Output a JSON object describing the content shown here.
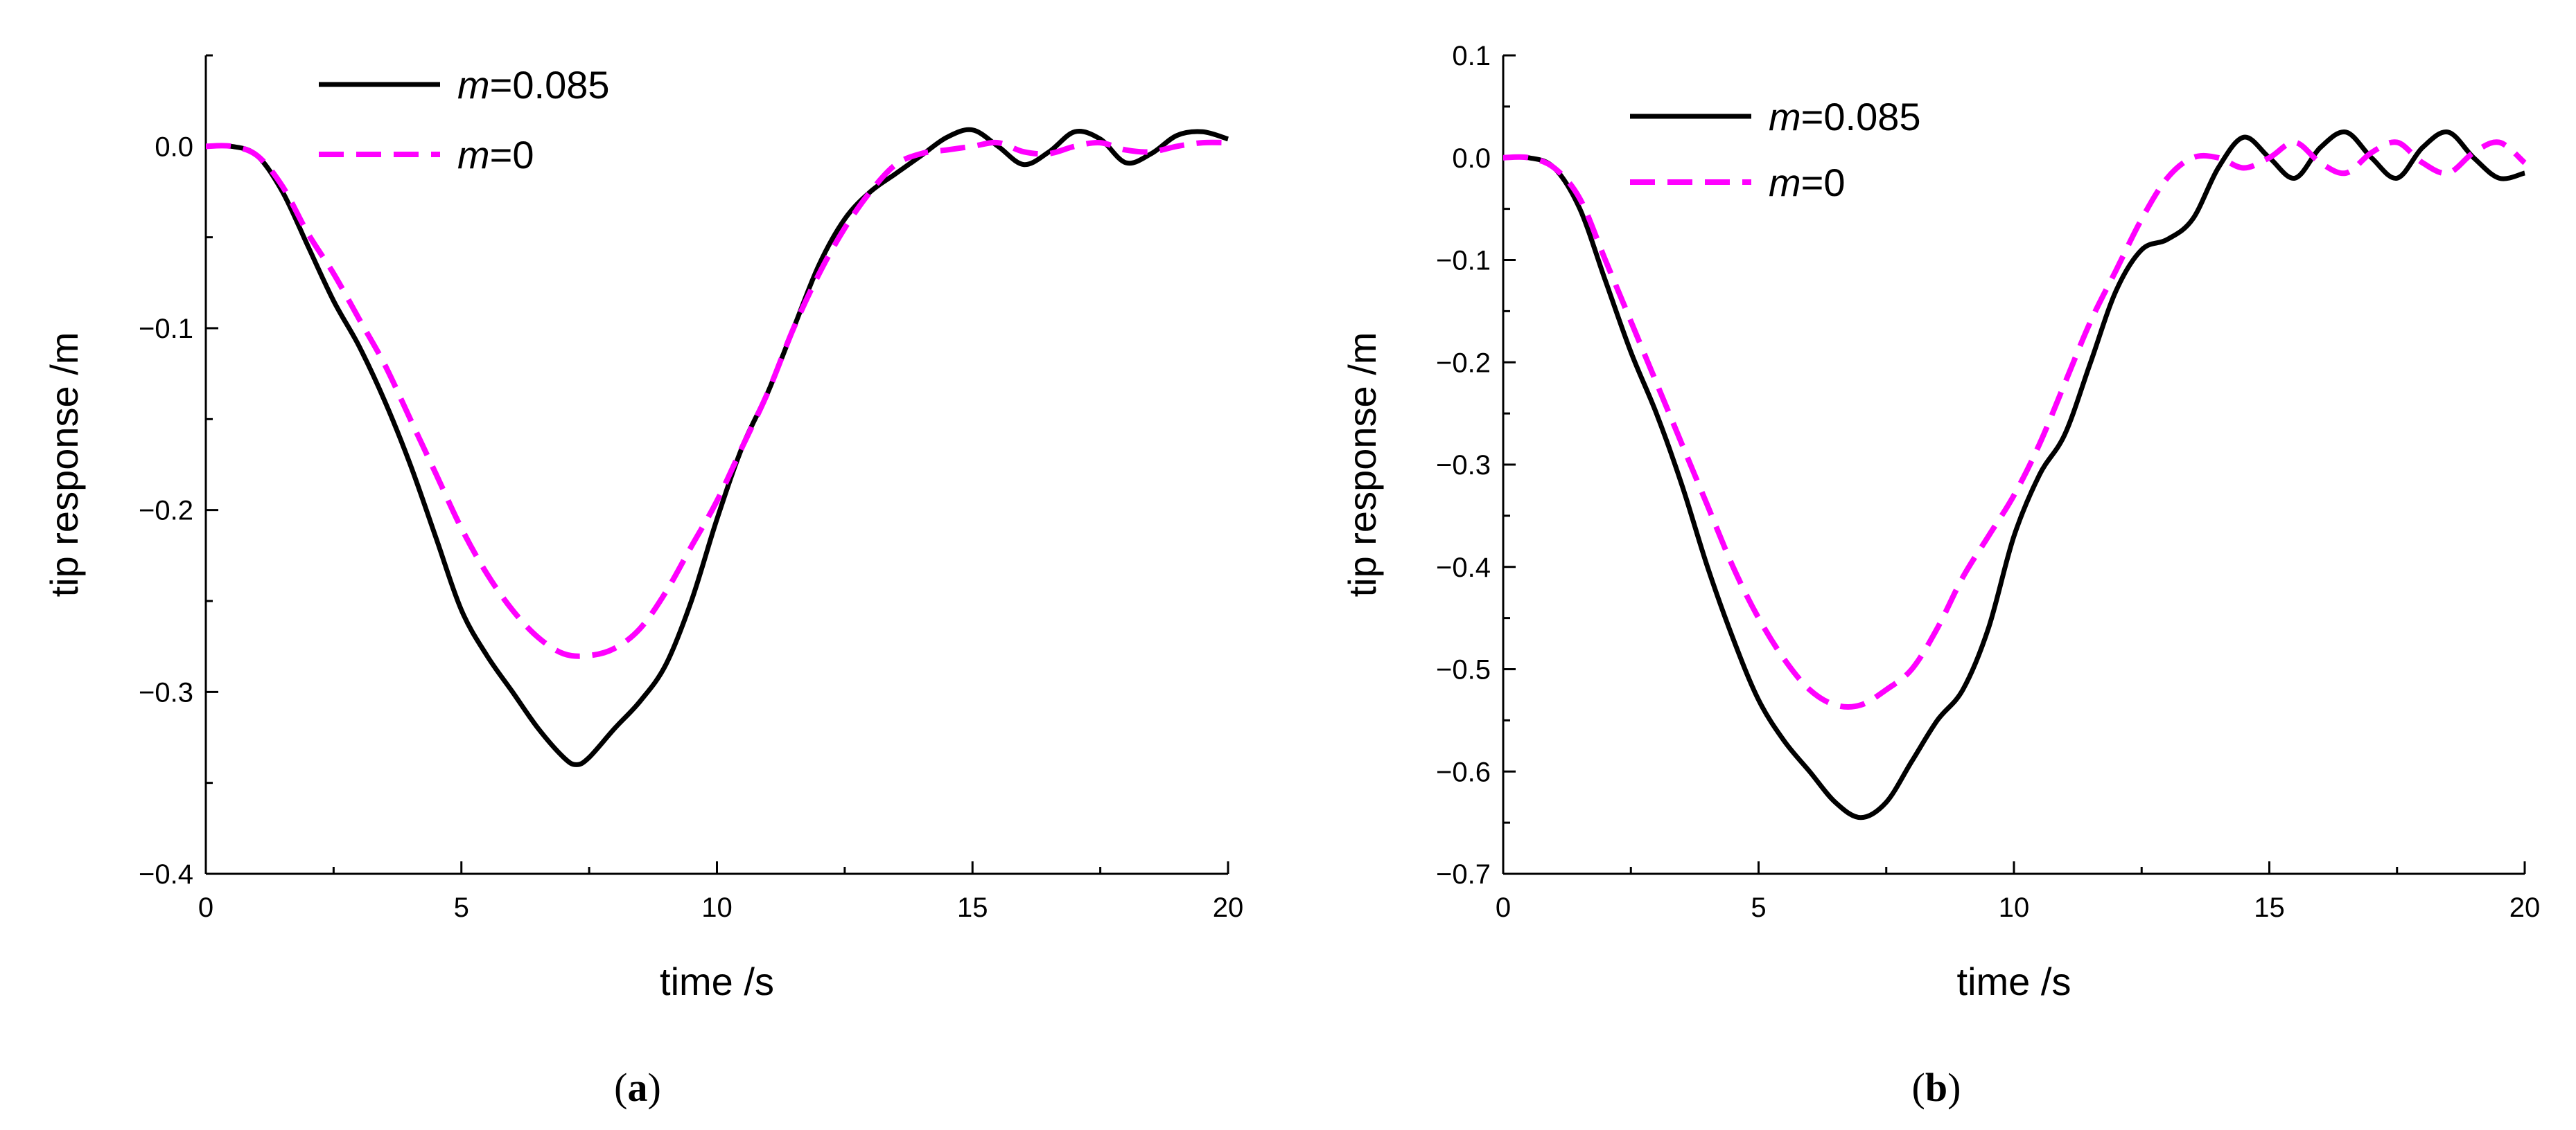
{
  "colors": {
    "series_solid": "#000000",
    "series_dashed": "#ff00ff"
  },
  "chart_data": [
    {
      "type": "line",
      "panel_label": "(a)",
      "panel_label_letter": "a",
      "xlabel": "time /s",
      "ylabel": "tip response /m",
      "xlim": [
        0,
        20
      ],
      "ylim": [
        -0.4,
        0.05
      ],
      "xticks": [
        0,
        5,
        10,
        15,
        20
      ],
      "xtick_labels": [
        "0",
        "5",
        "10",
        "15",
        "20"
      ],
      "yticks": [
        0.0,
        -0.1,
        -0.2,
        -0.3,
        -0.4
      ],
      "ytick_labels": [
        "0.0",
        "−0.1",
        "−0.2",
        "−0.3",
        "−0.4"
      ],
      "x_minor_step": 2.5,
      "y_minor_step": 0.05,
      "legend": {
        "position": "top-left",
        "entries": [
          {
            "italic": "m",
            "rest": "=0.085"
          },
          {
            "italic": "m",
            "rest": "=0"
          }
        ]
      },
      "series": [
        {
          "name": "m=0.085",
          "style": "solid",
          "x": [
            0,
            0.5,
            1,
            1.5,
            2,
            2.5,
            3,
            3.5,
            4,
            4.5,
            5,
            5.5,
            6,
            6.5,
            7,
            7.25,
            7.5,
            8,
            8.5,
            9,
            9.5,
            10,
            10.5,
            11,
            11.5,
            12,
            12.5,
            13,
            13.5,
            14,
            14.5,
            15,
            15.5,
            16,
            16.5,
            17,
            17.5,
            18,
            18.5,
            19,
            19.5,
            20
          ],
          "y": [
            0,
            0,
            -0.005,
            -0.025,
            -0.055,
            -0.085,
            -0.11,
            -0.14,
            -0.175,
            -0.215,
            -0.255,
            -0.28,
            -0.3,
            -0.32,
            -0.336,
            -0.34,
            -0.336,
            -0.32,
            -0.305,
            -0.285,
            -0.25,
            -0.205,
            -0.165,
            -0.135,
            -0.1,
            -0.065,
            -0.04,
            -0.025,
            -0.015,
            -0.005,
            0.005,
            0.009,
            0.0,
            -0.01,
            -0.003,
            0.008,
            0.004,
            -0.009,
            -0.004,
            0.006,
            0.008,
            0.004
          ]
        },
        {
          "name": "m=0",
          "style": "dashed",
          "x": [
            0,
            0.5,
            1,
            1.5,
            2,
            2.5,
            3,
            3.5,
            4,
            4.5,
            5,
            5.5,
            6,
            6.5,
            7,
            7.5,
            8,
            8.5,
            9,
            9.5,
            10,
            10.5,
            11,
            11.5,
            12,
            12.5,
            13,
            13.5,
            14,
            14.5,
            15,
            15.5,
            16,
            16.5,
            17,
            17.5,
            18,
            18.5,
            19,
            19.5,
            20
          ],
          "y": [
            0,
            0,
            -0.005,
            -0.022,
            -0.048,
            -0.07,
            -0.095,
            -0.12,
            -0.15,
            -0.18,
            -0.21,
            -0.235,
            -0.255,
            -0.27,
            -0.279,
            -0.28,
            -0.276,
            -0.265,
            -0.245,
            -0.22,
            -0.195,
            -0.165,
            -0.135,
            -0.1,
            -0.07,
            -0.045,
            -0.025,
            -0.01,
            -0.004,
            -0.002,
            0.0,
            0.002,
            -0.003,
            -0.004,
            0.0,
            0.002,
            -0.002,
            -0.003,
            0.0,
            0.002,
            0.002
          ]
        }
      ]
    },
    {
      "type": "line",
      "panel_label": "(b)",
      "panel_label_letter": "b",
      "xlabel": "time /s",
      "ylabel": "tip response /m",
      "xlim": [
        0,
        20
      ],
      "ylim": [
        -0.7,
        0.1
      ],
      "xticks": [
        0,
        5,
        10,
        15,
        20
      ],
      "xtick_labels": [
        "0",
        "5",
        "10",
        "15",
        "20"
      ],
      "yticks": [
        0.1,
        0.0,
        -0.1,
        -0.2,
        -0.3,
        -0.4,
        -0.5,
        -0.6,
        -0.7
      ],
      "ytick_labels": [
        "0.1",
        "0.0",
        "−0.1",
        "−0.2",
        "−0.3",
        "−0.4",
        "−0.5",
        "−0.6",
        "−0.7"
      ],
      "x_minor_step": 2.5,
      "y_minor_step": 0.05,
      "legend": {
        "position": "top-left",
        "entries": [
          {
            "italic": "m",
            "rest": "=0.085"
          },
          {
            "italic": "m",
            "rest": "=0"
          }
        ]
      },
      "series": [
        {
          "name": "m=0.085",
          "style": "solid",
          "x": [
            0,
            0.5,
            1,
            1.5,
            2,
            2.5,
            3,
            3.5,
            4,
            4.5,
            5,
            5.5,
            6,
            6.5,
            7,
            7.5,
            8,
            8.5,
            9,
            9.5,
            10,
            10.5,
            11,
            11.5,
            12,
            12.5,
            13,
            13.5,
            14,
            14.5,
            15,
            15.5,
            16,
            16.5,
            17,
            17.5,
            18,
            18.5,
            19,
            19.5,
            20
          ],
          "y": [
            0,
            0,
            -0.01,
            -0.05,
            -0.12,
            -0.19,
            -0.25,
            -0.32,
            -0.4,
            -0.47,
            -0.53,
            -0.57,
            -0.6,
            -0.63,
            -0.645,
            -0.63,
            -0.59,
            -0.55,
            -0.52,
            -0.46,
            -0.37,
            -0.31,
            -0.27,
            -0.2,
            -0.13,
            -0.09,
            -0.08,
            -0.06,
            -0.01,
            0.02,
            0.0,
            -0.02,
            0.01,
            0.025,
            0.0,
            -0.02,
            0.01,
            0.025,
            0.0,
            -0.02,
            -0.015
          ]
        },
        {
          "name": "m=0",
          "style": "dashed",
          "x": [
            0,
            0.5,
            1,
            1.5,
            2,
            2.5,
            3,
            3.5,
            4,
            4.5,
            5,
            5.5,
            6,
            6.5,
            7,
            7.5,
            8,
            8.5,
            9,
            9.5,
            10,
            10.5,
            11,
            11.5,
            12,
            12.5,
            13,
            13.5,
            14,
            14.5,
            15,
            15.5,
            16,
            16.5,
            17,
            17.5,
            18,
            18.5,
            19,
            19.5,
            20
          ],
          "y": [
            0,
            0,
            -0.01,
            -0.04,
            -0.1,
            -0.16,
            -0.22,
            -0.28,
            -0.34,
            -0.4,
            -0.45,
            -0.49,
            -0.52,
            -0.535,
            -0.535,
            -0.52,
            -0.5,
            -0.46,
            -0.41,
            -0.37,
            -0.33,
            -0.28,
            -0.22,
            -0.16,
            -0.11,
            -0.06,
            -0.02,
            0.0,
            0.0,
            -0.01,
            0.0,
            0.015,
            -0.005,
            -0.015,
            0.005,
            0.015,
            -0.005,
            -0.015,
            0.005,
            0.015,
            -0.005
          ]
        }
      ]
    }
  ]
}
